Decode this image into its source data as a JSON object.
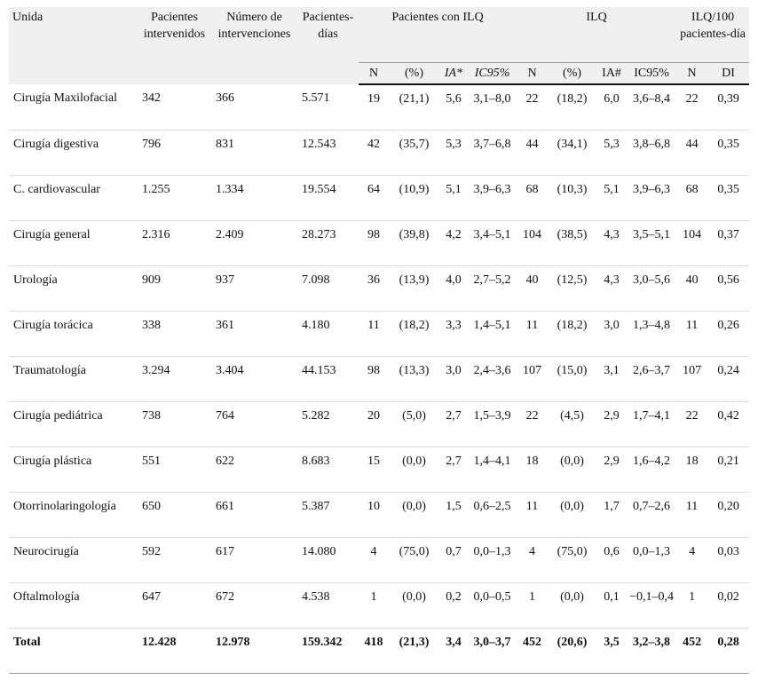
{
  "table": {
    "header": [
      "Unida",
      "Pacientes intervenidos",
      "Número de intervenciones",
      "Pacientes-días",
      "Pacientes con ILQ",
      "ILQ",
      "ILQ/100 pacientes-día"
    ],
    "subheader": [
      "N",
      "(%)",
      "IA*",
      "IC95%",
      "N",
      "(%)",
      "IA#",
      "IC95%",
      "N",
      "DI"
    ],
    "rows": [
      [
        "Cirugía Maxilofacial",
        "342",
        "366",
        "5.571",
        "19",
        "(21,1)",
        "5,6",
        "3,1–8,0",
        "22",
        "(18,2)",
        "6,0",
        "3,6–8,4",
        "22",
        "0,39"
      ],
      [
        "Cirugía digestiva",
        "796",
        "831",
        "12.543",
        "42",
        "(35,7)",
        "5,3",
        "3,7–6,8",
        "44",
        "(34,1)",
        "5,3",
        "3,8–6,8",
        "44",
        "0,35"
      ],
      [
        "C. cardiovascular",
        "1.255",
        "1.334",
        "19.554",
        "64",
        "(10,9)",
        "5,1",
        "3,9–6,3",
        "68",
        "(10,3)",
        "5,1",
        "3,9–6,3",
        "68",
        "0,35"
      ],
      [
        "Cirugía general",
        "2.316",
        "2.409",
        "28.273",
        "98",
        "(39,8)",
        "4,2",
        "3,4–5,1",
        "104",
        "(38,5)",
        "4,3",
        "3,5–5,1",
        "104",
        "0,37"
      ],
      [
        "Urología",
        "909",
        "937",
        "7.098",
        "36",
        "(13,9)",
        "4,0",
        "2,7–5,2",
        "40",
        "(12,5)",
        "4,3",
        "3,0–5,6",
        "40",
        "0,56"
      ],
      [
        "Cirugía torácica",
        "338",
        "361",
        "4.180",
        "11",
        "(18,2)",
        "3,3",
        "1,4–5,1",
        "11",
        "(18,2)",
        "3,0",
        "1,3–4,8",
        "11",
        "0,26"
      ],
      [
        "Traumatología",
        "3.294",
        "3.404",
        "44.153",
        "98",
        "(13,3)",
        "3,0",
        "2,4–3,6",
        "107",
        "(15,0)",
        "3,1",
        "2,6–3,7",
        "107",
        "0,24"
      ],
      [
        "Cirugía pediátrica",
        "738",
        "764",
        "5.282",
        "20",
        "(5,0)",
        "2,7",
        "1,5–3,9",
        "22",
        "(4,5)",
        "2,9",
        "1,7–4,1",
        "22",
        "0,42"
      ],
      [
        "Cirugía plástica",
        "551",
        "622",
        "8.683",
        "15",
        "(0,0)",
        "2,7",
        "1,4–4,1",
        "18",
        "(0,0)",
        "2,9",
        "1,6–4,2",
        "18",
        "0,21"
      ],
      [
        "Otorrinolaringología",
        "650",
        "661",
        "5.387",
        "10",
        "(0,0)",
        "1,5",
        "0,6–2,5",
        "11",
        "(0,0)",
        "1,7",
        "0,7–2,6",
        "11",
        "0,20"
      ],
      [
        "Neurocirugía",
        "592",
        "617",
        "14.080",
        "4",
        "(75,0)",
        "0,7",
        "0,0–1,3",
        "4",
        "(75,0)",
        "0,6",
        "0,0–1,3",
        "4",
        "0,03"
      ],
      [
        "Oftalmología",
        "647",
        "672",
        "4.538",
        "1",
        "(0,0)",
        "0,2",
        "0,0–0,5",
        "1",
        "(0,0)",
        "0,1",
        "−0,1–0,4",
        "1",
        "0,02"
      ],
      [
        "Total",
        "12.428",
        "12.978",
        "159.342",
        "418",
        "(21,3)",
        "3,4",
        "3,0–3,7",
        "452",
        "(20,6)",
        "3,5",
        "3,2–3,8",
        "452",
        "0,28"
      ]
    ]
  }
}
